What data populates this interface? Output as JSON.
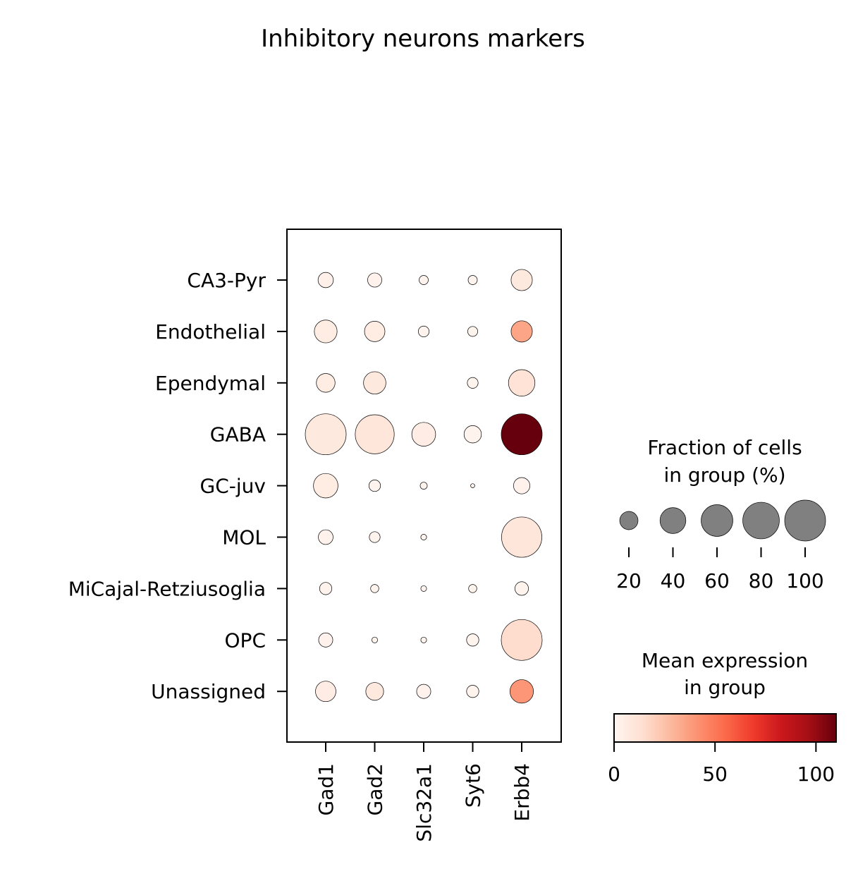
{
  "chart_data": {
    "type": "dotplot",
    "title": "Inhibitory neurons markers",
    "genes": [
      "Gad1",
      "Gad2",
      "Slc32a1",
      "Syt6",
      "Erbb4"
    ],
    "groups": [
      "CA3-Pyr",
      "Endothelial",
      "Ependymal",
      "GABA",
      "GC-juv",
      "MOL",
      "MiCajal-Retziusoglia",
      "OPC",
      "Unassigned"
    ],
    "fraction_pct": [
      [
        14,
        12,
        5,
        5,
        27
      ],
      [
        31,
        25,
        7,
        6,
        27
      ],
      [
        21,
        30,
        0,
        7,
        42
      ],
      [
        100,
        91,
        34,
        18,
        100
      ],
      [
        36,
        8,
        3,
        1,
        16
      ],
      [
        13,
        7,
        2,
        0,
        97
      ],
      [
        9,
        4,
        2,
        4,
        11
      ],
      [
        12,
        2,
        2,
        9,
        100
      ],
      [
        25,
        19,
        12,
        9,
        33
      ]
    ],
    "mean_expression": [
      [
        3,
        2,
        1,
        1,
        8
      ],
      [
        6,
        6,
        1,
        1,
        35
      ],
      [
        6,
        8,
        0,
        1,
        12
      ],
      [
        8,
        10,
        5,
        1,
        110
      ],
      [
        6,
        1,
        1,
        1,
        2
      ],
      [
        2,
        1,
        1,
        0,
        10
      ],
      [
        1,
        1,
        1,
        1,
        1
      ],
      [
        2,
        1,
        1,
        1,
        15
      ],
      [
        5,
        8,
        2,
        1,
        40
      ]
    ],
    "size_legend": {
      "title_line1": "Fraction of cells",
      "title_line2": "in group (%)",
      "values": [
        20,
        40,
        60,
        80,
        100
      ],
      "labels": [
        "20",
        "40",
        "60",
        "80",
        "100"
      ],
      "dot_color": "#808080"
    },
    "color_legend": {
      "title_line1": "Mean expression",
      "title_line2": "in group",
      "range": [
        0,
        110
      ],
      "ticks": [
        0,
        50,
        100
      ],
      "tick_labels": [
        "0",
        "50",
        "100"
      ],
      "colormap": "Reds",
      "colormap_stops": [
        "#fff5f0",
        "#fee0d2",
        "#fcbba1",
        "#fc9272",
        "#fb6a4a",
        "#ef3b2c",
        "#cb181d",
        "#a50f15",
        "#67000d"
      ]
    }
  }
}
